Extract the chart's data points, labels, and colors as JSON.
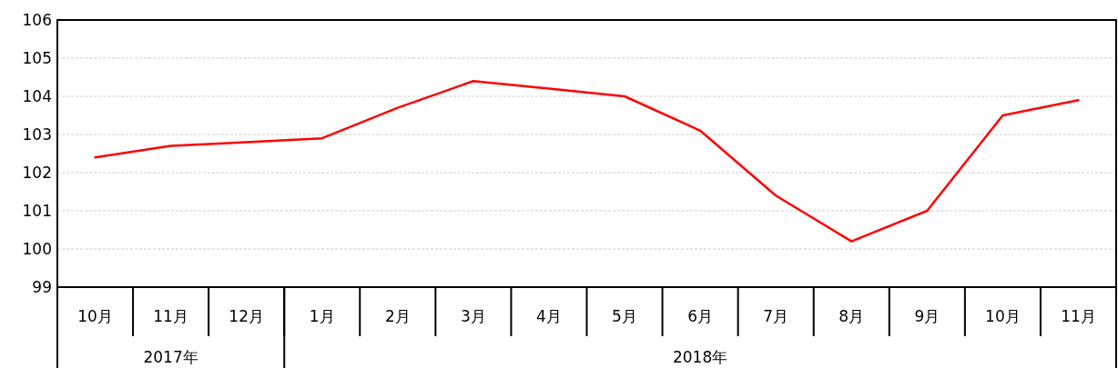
{
  "chart_data": {
    "type": "line",
    "x": [
      "2017-10",
      "2017-11",
      "2017-12",
      "2018-01",
      "2018-02",
      "2018-03",
      "2018-04",
      "2018-05",
      "2018-06",
      "2018-07",
      "2018-08",
      "2018-09",
      "2018-10",
      "2018-11"
    ],
    "series": [
      {
        "color": "#ff0000",
        "values": [
          102.4,
          102.7,
          102.8,
          102.9,
          103.7,
          104.4,
          104.2,
          104.0,
          103.1,
          101.4,
          100.2,
          101.0,
          103.5,
          103.9
        ]
      }
    ],
    "xlim": [
      "2017-09-16",
      "2018-11-16"
    ],
    "xticks": [
      {
        "value": "2017-10",
        "label": "10月"
      },
      {
        "value": "2017-11",
        "label": "11月"
      },
      {
        "value": "2017-12",
        "label": "12月"
      },
      {
        "value": "2018-01",
        "label": "1月"
      },
      {
        "value": "2018-02",
        "label": "2月"
      },
      {
        "value": "2018-03",
        "label": "3月"
      },
      {
        "value": "2018-04",
        "label": "4月"
      },
      {
        "value": "2018-05",
        "label": "5月"
      },
      {
        "value": "2018-06",
        "label": "6月"
      },
      {
        "value": "2018-07",
        "label": "7月"
      },
      {
        "value": "2018-08",
        "label": "8月"
      },
      {
        "value": "2018-09",
        "label": "9月"
      },
      {
        "value": "2018-10",
        "label": "10月"
      },
      {
        "value": "2018-11",
        "label": "11月"
      }
    ],
    "ylim": [
      99,
      106
    ],
    "yticks": [
      99,
      100,
      101,
      102,
      103,
      104,
      105,
      106
    ],
    "grid": "y",
    "marker": "none",
    "line_style": "solid",
    "annotations": [
      "2017年",
      "2018年"
    ]
  }
}
